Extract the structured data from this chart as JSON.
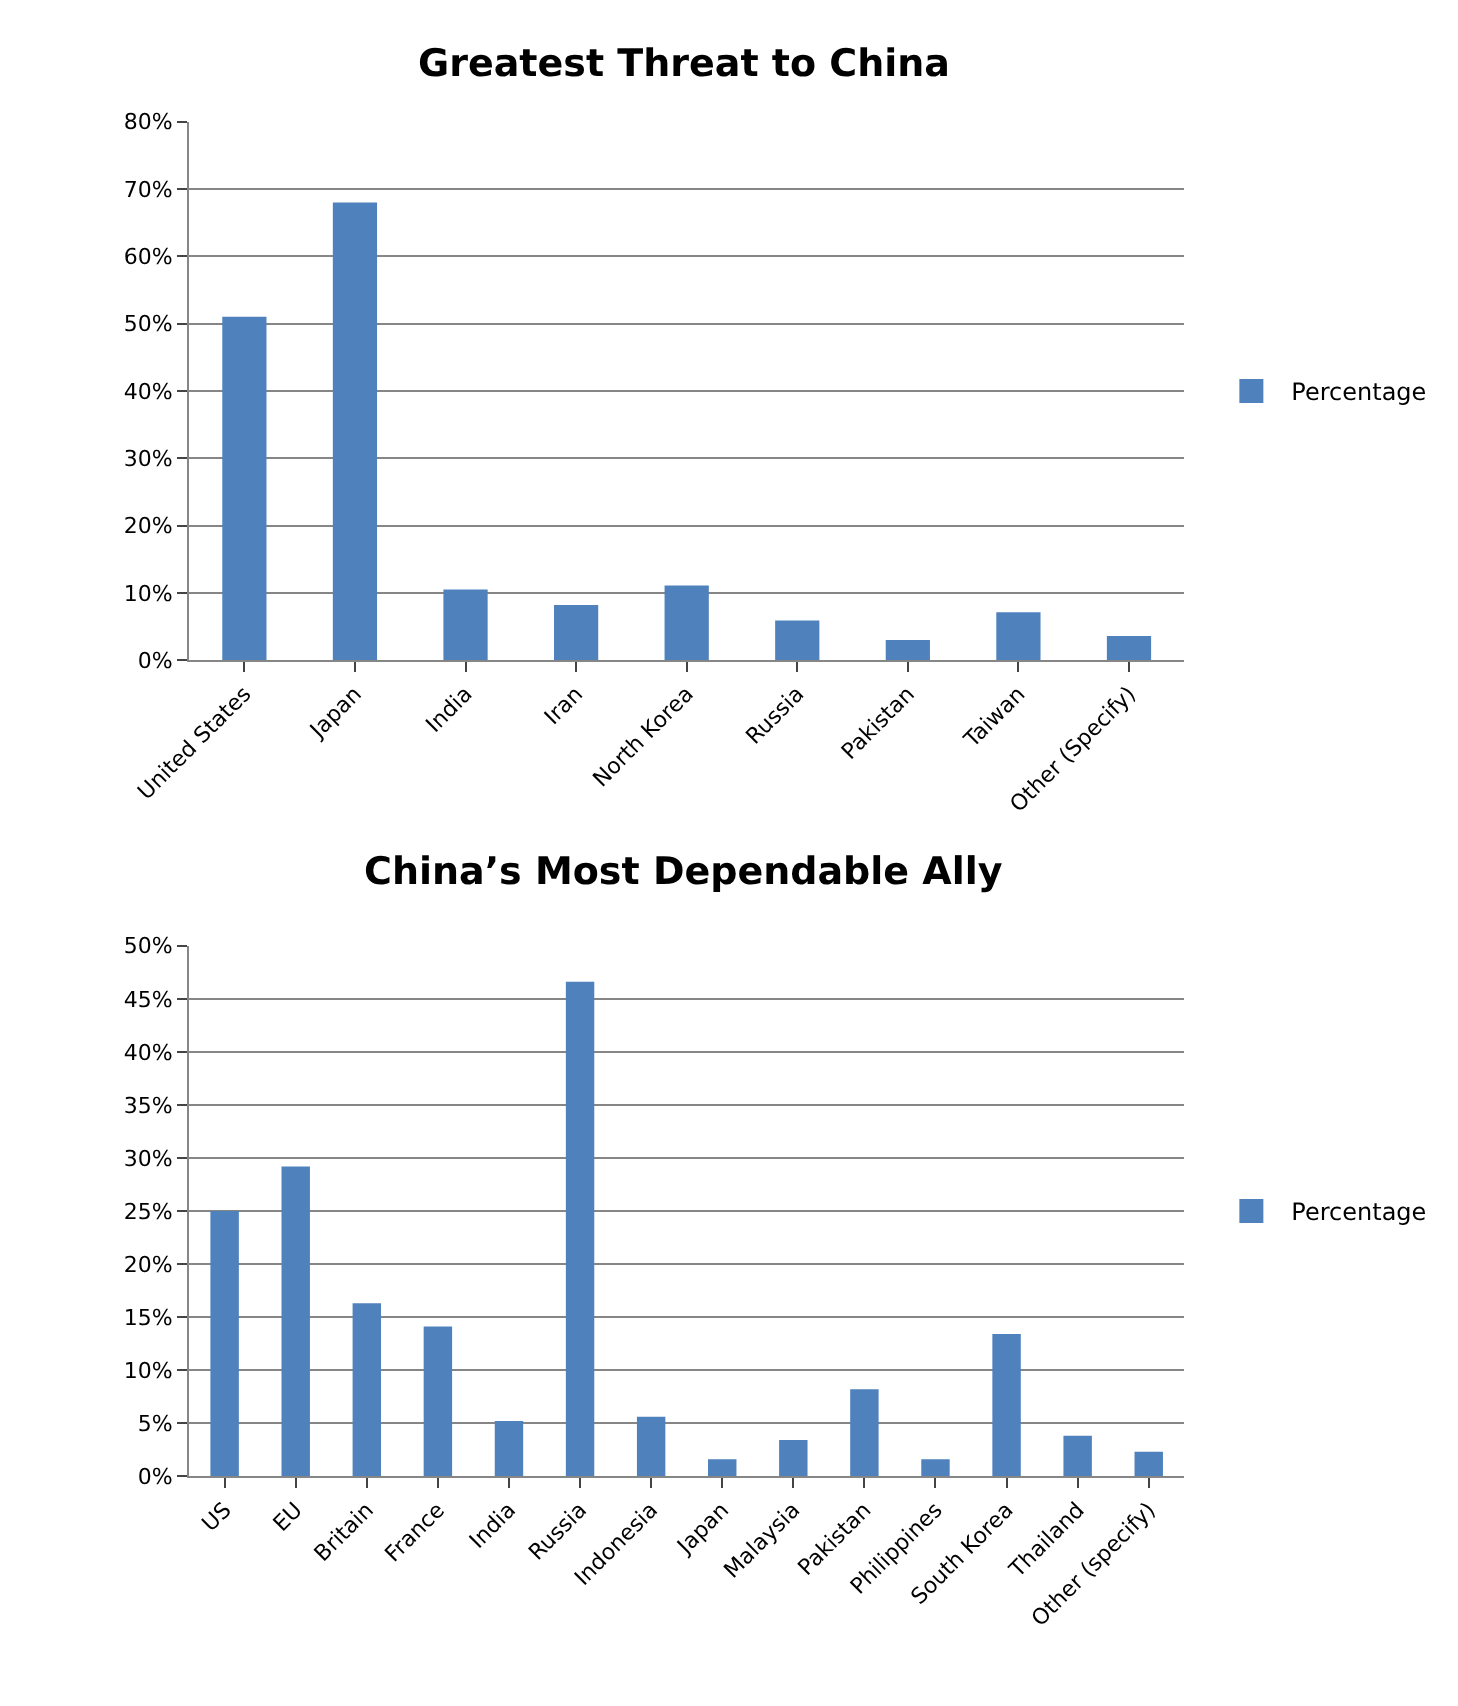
{
  "chart_data": [
    {
      "type": "bar",
      "title": "Greatest Threat to China",
      "categories": [
        "United States",
        "Japan",
        "India",
        "Iran",
        "North Korea",
        "Russia",
        "Pakistan",
        "Taiwan",
        "Other (Specify)"
      ],
      "series": [
        {
          "name": "Percentage",
          "color": "#4f81bd",
          "values": [
            51.0,
            68.0,
            10.5,
            8.2,
            11.1,
            5.9,
            3.0,
            7.1,
            3.6
          ]
        }
      ],
      "ylim": [
        0,
        80
      ],
      "yticks": [
        {
          "value": 0,
          "label": "0%"
        },
        {
          "value": 10,
          "label": "10%"
        },
        {
          "value": 20,
          "label": "20%"
        },
        {
          "value": 30,
          "label": "30%"
        },
        {
          "value": 40,
          "label": "40%"
        },
        {
          "value": 50,
          "label": "50%"
        },
        {
          "value": 60,
          "label": "60%"
        },
        {
          "value": 70,
          "label": "70%"
        },
        {
          "value": 80,
          "label": "80%"
        }
      ],
      "grid": "y",
      "legend": "right"
    },
    {
      "type": "bar",
      "title": "China’s Most Dependable Ally",
      "categories": [
        "US",
        "EU",
        "Britain",
        "France",
        "India",
        "Russia",
        "Indonesia",
        "Japan",
        "Malaysia",
        "Pakistan",
        "Philippines",
        "South Korea",
        "Thailand",
        "Other (specify)"
      ],
      "series": [
        {
          "name": "Percentage",
          "color": "#4f81bd",
          "values": [
            25.0,
            29.2,
            16.3,
            14.1,
            5.2,
            46.6,
            5.6,
            1.6,
            3.4,
            8.2,
            1.6,
            13.4,
            3.8,
            2.3
          ]
        }
      ],
      "ylim": [
        0,
        50
      ],
      "yticks": [
        {
          "value": 0,
          "label": "0%"
        },
        {
          "value": 5,
          "label": "5%"
        },
        {
          "value": 10,
          "label": "10%"
        },
        {
          "value": 15,
          "label": "15%"
        },
        {
          "value": 20,
          "label": "20%"
        },
        {
          "value": 25,
          "label": "25%"
        },
        {
          "value": 30,
          "label": "30%"
        },
        {
          "value": 35,
          "label": "35%"
        },
        {
          "value": 40,
          "label": "40%"
        },
        {
          "value": 45,
          "label": "45%"
        },
        {
          "value": 50,
          "label": "50%"
        }
      ],
      "grid": "y",
      "legend": "right"
    }
  ]
}
